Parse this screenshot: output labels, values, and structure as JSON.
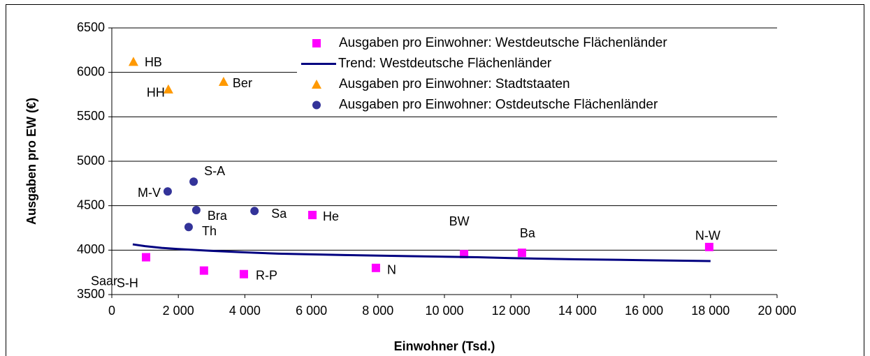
{
  "chart_data": {
    "type": "scatter",
    "x_label": "Einwohner (Tsd.)",
    "y_label": "Ausgaben pro EW (€)",
    "xlim": [
      0,
      20000
    ],
    "xticks": [
      0,
      {
        "value": 2000,
        "label": "2 000"
      },
      {
        "value": 4000,
        "label": "4 000"
      },
      {
        "value": 6000,
        "label": "6 000"
      },
      {
        "value": 8000,
        "label": "8 000"
      },
      {
        "value": 10000,
        "label": "10 000"
      },
      {
        "value": 12000,
        "label": "12 000"
      },
      {
        "value": 14000,
        "label": "14 000"
      },
      {
        "value": 16000,
        "label": "16 000"
      },
      {
        "value": 18000,
        "label": "18 000"
      },
      {
        "value": 20000,
        "label": "20 000"
      }
    ],
    "ylim": [
      3500,
      6500
    ],
    "yticks": [
      3500,
      4000,
      4500,
      5000,
      5500,
      6000,
      6500
    ],
    "grid": true,
    "legend": "top-right",
    "series": [
      {
        "name": "Ausgaben pro Einwohner: Westdeutsche Flächenländer",
        "color": "#ff00ff",
        "marker": "square",
        "x": [
          1030,
          2770,
          3970,
          6030,
          7940,
          10590,
          12330,
          17960
        ],
        "values": [
          3920,
          3770,
          3730,
          4395,
          3800,
          3955,
          3970,
          4035
        ],
        "labels": [
          "Saar",
          "S-H",
          "R-P",
          "He",
          "N",
          "BW",
          "Ba",
          "N-W"
        ]
      },
      {
        "name": "Trend: Westdeutsche Flächenländer",
        "color": "#000080",
        "marker": "line",
        "x": [
          630,
          1000,
          1500,
          2000,
          3000,
          4000,
          5000,
          7000,
          9000,
          11000,
          12000,
          14000,
          16000,
          18000
        ],
        "values": [
          4065,
          4045,
          4025,
          4012,
          3992,
          3975,
          3960,
          3945,
          3932,
          3920,
          3910,
          3897,
          3887,
          3877
        ]
      },
      {
        "name": "Ausgaben pro Einwohner: Stadtstaaten",
        "color": "#ff9900",
        "marker": "triangle",
        "x": [
          650,
          1700,
          3360
        ],
        "values": [
          6120,
          5810,
          5895
        ],
        "labels": [
          "HB",
          "HH",
          "Ber"
        ]
      },
      {
        "name": "Ausgaben pro Einwohner: Ostdeutsche Flächenländer",
        "color": "#333399",
        "marker": "circle",
        "x": [
          1680,
          2460,
          2540,
          2310,
          4290
        ],
        "values": [
          4660,
          4770,
          4450,
          4260,
          4440
        ],
        "labels": [
          "M-V",
          "S-A",
          "Bra",
          "Th",
          "Sa"
        ]
      }
    ]
  }
}
